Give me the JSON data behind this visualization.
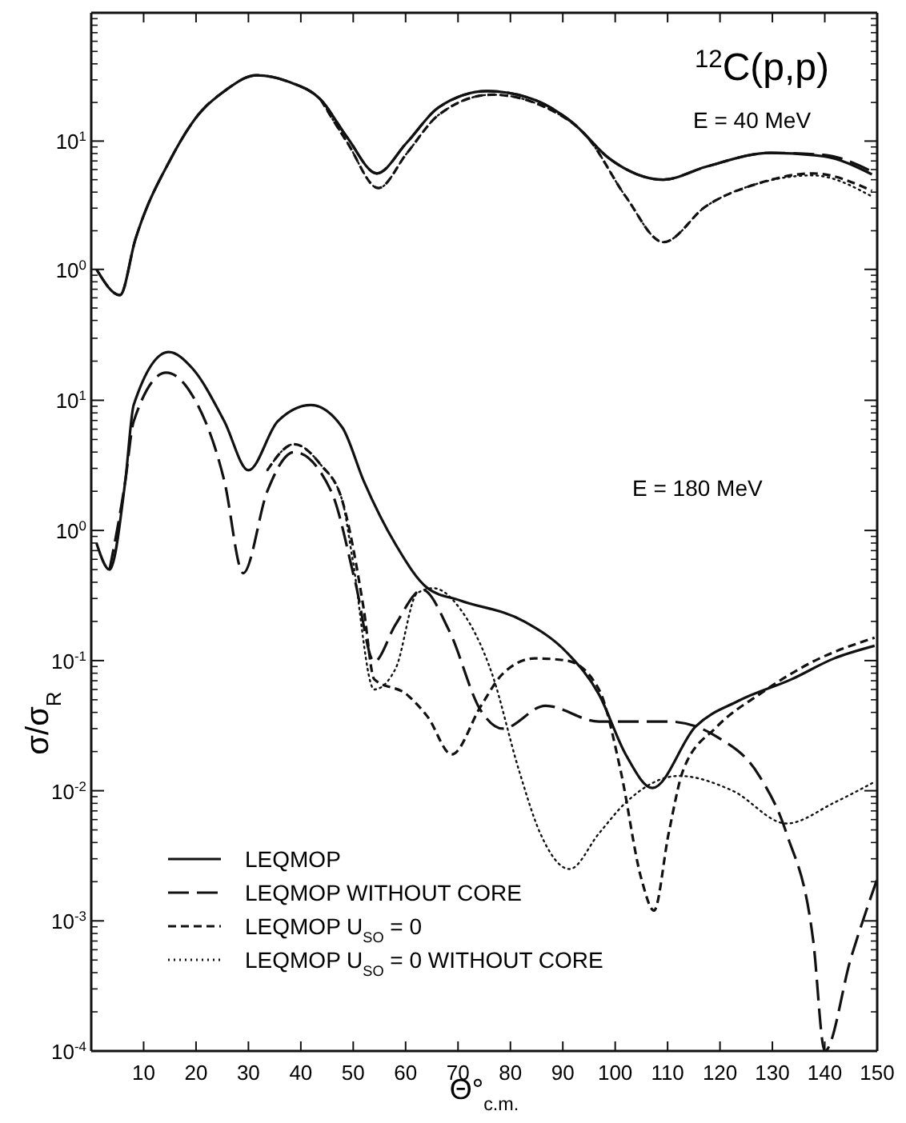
{
  "chart_data": [
    {
      "type": "line",
      "title": "$^{12}$C(p,p)",
      "annotations": [
        "E = 40 MeV"
      ],
      "log": "y",
      "xlim": [
        0,
        150
      ],
      "xticks": [
        10,
        20,
        30,
        40,
        50,
        60,
        70,
        80,
        90,
        100,
        110,
        120,
        130,
        140,
        150
      ],
      "ylim": [
        0.33,
        100
      ],
      "yticks": [
        {
          "value": 1,
          "label": "10$^{0}$"
        },
        {
          "value": 10,
          "label": "10$^{1}$"
        }
      ],
      "tick_labels": "y",
      "grid": false,
      "legend": false,
      "series": [
        {
          "color": "#111111",
          "line_style": "solid",
          "x": [
            1,
            5.5,
            8.4,
            15.2,
            20.3,
            25.4,
            31.5,
            37.7,
            43.8,
            48.9,
            54.5,
            60.2,
            66.3,
            75.5,
            83.6,
            91.8,
            98.9,
            109.2,
            117.3,
            129.6,
            139.8,
            149
          ],
          "values": [
            1.0,
            0.63,
            1.7,
            7.3,
            15.8,
            24.5,
            32.6,
            29,
            21,
            10.6,
            5.6,
            9.7,
            18.3,
            24.5,
            21.7,
            14,
            7.3,
            5,
            6.3,
            8.1,
            7.6,
            5.5
          ]
        },
        {
          "color": "#111111",
          "line_style": "longdash",
          "x": [
            1,
            5.5,
            8.4,
            15.2,
            20.3,
            25.4,
            31.5,
            37.7,
            43.8,
            48.9,
            54.5,
            60.2,
            66.3,
            75.5,
            83.6,
            91.8,
            98.9,
            109.2,
            117.3,
            129.6,
            139.8,
            149
          ],
          "values": [
            1.0,
            0.63,
            1.7,
            7.3,
            15.8,
            24.5,
            32.6,
            29,
            21,
            10.6,
            5.6,
            9.7,
            18.3,
            24.5,
            21.7,
            14,
            7.3,
            5,
            6.3,
            8.1,
            7.8,
            5.8
          ]
        },
        {
          "color": "#111111",
          "line_style": "dashed",
          "x": [
            43.8,
            48.9,
            54.8,
            60.2,
            66.3,
            76.5,
            86.7,
            94.8,
            102,
            109.2,
            117.3,
            127.5,
            137.7,
            149
          ],
          "values": [
            21,
            9.7,
            4.3,
            8,
            16,
            23,
            18.3,
            10.6,
            3.7,
            1.63,
            3.1,
            4.7,
            5.6,
            4.1
          ]
        },
        {
          "color": "#111111",
          "line_style": "dotted",
          "x": [
            43.8,
            48.9,
            54.8,
            60.2,
            66.3,
            76.5,
            86.7,
            94.8,
            102,
            109.2,
            117.3,
            127.5,
            137.7,
            149
          ],
          "values": [
            21,
            9.7,
            4.3,
            8,
            16,
            23,
            18.3,
            10.6,
            3.7,
            1.63,
            3.1,
            4.7,
            5.4,
            3.7
          ]
        }
      ]
    },
    {
      "type": "line",
      "xlabel": "Θ°$_{c.m.}$",
      "ylabel": "σ/σ$_{R}$",
      "annotations": [
        "E = 180 MeV"
      ],
      "log": "y",
      "xlim": [
        0,
        150
      ],
      "xticks": [
        10,
        20,
        30,
        40,
        50,
        60,
        70,
        80,
        90,
        100,
        110,
        120,
        130,
        140,
        150
      ],
      "ylim": [
        0.0001,
        34
      ],
      "yticks": [
        {
          "value": 0.0001,
          "label": "10$^{-4}$"
        },
        {
          "value": 0.001,
          "label": "10$^{-3}$"
        },
        {
          "value": 0.01,
          "label": "10$^{-2}$"
        },
        {
          "value": 0.1,
          "label": "10$^{-1}$"
        },
        {
          "value": 1,
          "label": "10$^{0}$"
        },
        {
          "value": 10,
          "label": "10$^{1}$"
        }
      ],
      "grid": false,
      "legend": "bottom left",
      "series": [
        {
          "name": "LEQMOP",
          "color": "#111111",
          "line_style": "solid",
          "x": [
            1,
            3.5,
            6.5,
            8.1,
            14.8,
            19.3,
            25.4,
            30,
            35.6,
            41.9,
            47.9,
            52,
            58.1,
            64.2,
            70.4,
            82.6,
            90.8,
            96.9,
            102,
            107.1,
            115.3,
            123.5,
            133.7,
            141.8,
            149.5
          ],
          "values": [
            0.8,
            0.5,
            2.4,
            9.2,
            23.5,
            17.6,
            6.9,
            2.9,
            6.9,
            9.2,
            6.2,
            2.4,
            0.78,
            0.36,
            0.29,
            0.2,
            0.115,
            0.055,
            0.019,
            0.0105,
            0.031,
            0.049,
            0.072,
            0.104,
            0.13
          ]
        },
        {
          "name": "LEQMOP WITHOUT CORE",
          "color": "#111111",
          "line_style": "longdash",
          "x": [
            3.5,
            6.5,
            8.1,
            14.3,
            19.3,
            25.4,
            29,
            33.6,
            38.7,
            45.8,
            50.4,
            54,
            58.1,
            63.2,
            68.3,
            74.4,
            78.5,
            86.7,
            96.9,
            110.2,
            119.4,
            127.5,
            132.7,
            137.8,
            140,
            145,
            150
          ],
          "values": [
            0.5,
            2.4,
            6.9,
            16.3,
            10.9,
            2.4,
            0.47,
            2,
            4,
            2,
            0.4,
            0.098,
            0.19,
            0.35,
            0.17,
            0.041,
            0.03,
            0.045,
            0.034,
            0.034,
            0.026,
            0.013,
            0.0047,
            0.0007,
            0.0001,
            0.00052,
            0.0021
          ]
        },
        {
          "name": "LEQMOP U$_{SO}$ = 0",
          "color": "#111111",
          "line_style": "dashed",
          "x": [
            33.6,
            38.7,
            43.8,
            47.9,
            52,
            54,
            60.2,
            64.2,
            68.8,
            74.4,
            78.5,
            84.6,
            90.8,
            96.9,
            101,
            105,
            107.4,
            110.2,
            113,
            119.4,
            127.5,
            137.7,
            149.5
          ],
          "values": [
            2.9,
            4.6,
            3.2,
            1.7,
            0.25,
            0.072,
            0.055,
            0.037,
            0.019,
            0.045,
            0.079,
            0.104,
            0.1,
            0.06,
            0.0145,
            0.0021,
            0.0012,
            0.0047,
            0.0145,
            0.031,
            0.055,
            0.098,
            0.15
          ]
        },
        {
          "name": "LEQMOP U$_{SO}$ = 0 WITHOUT CORE",
          "color": "#111111",
          "line_style": "dotted",
          "x": [
            33.6,
            38.7,
            43.8,
            47.9,
            49.8,
            54,
            58.1,
            62.2,
            65.3,
            70.4,
            76.5,
            81.6,
            85.7,
            91.3,
            96.9,
            102,
            112.2,
            122.4,
            132.7,
            141.8,
            149.5
          ],
          "values": [
            2.9,
            4.6,
            3.2,
            1.7,
            0.63,
            0.06,
            0.087,
            0.33,
            0.36,
            0.25,
            0.079,
            0.0145,
            0.0047,
            0.0025,
            0.0047,
            0.0081,
            0.013,
            0.01,
            0.0056,
            0.0081,
            0.0117
          ]
        }
      ]
    }
  ]
}
